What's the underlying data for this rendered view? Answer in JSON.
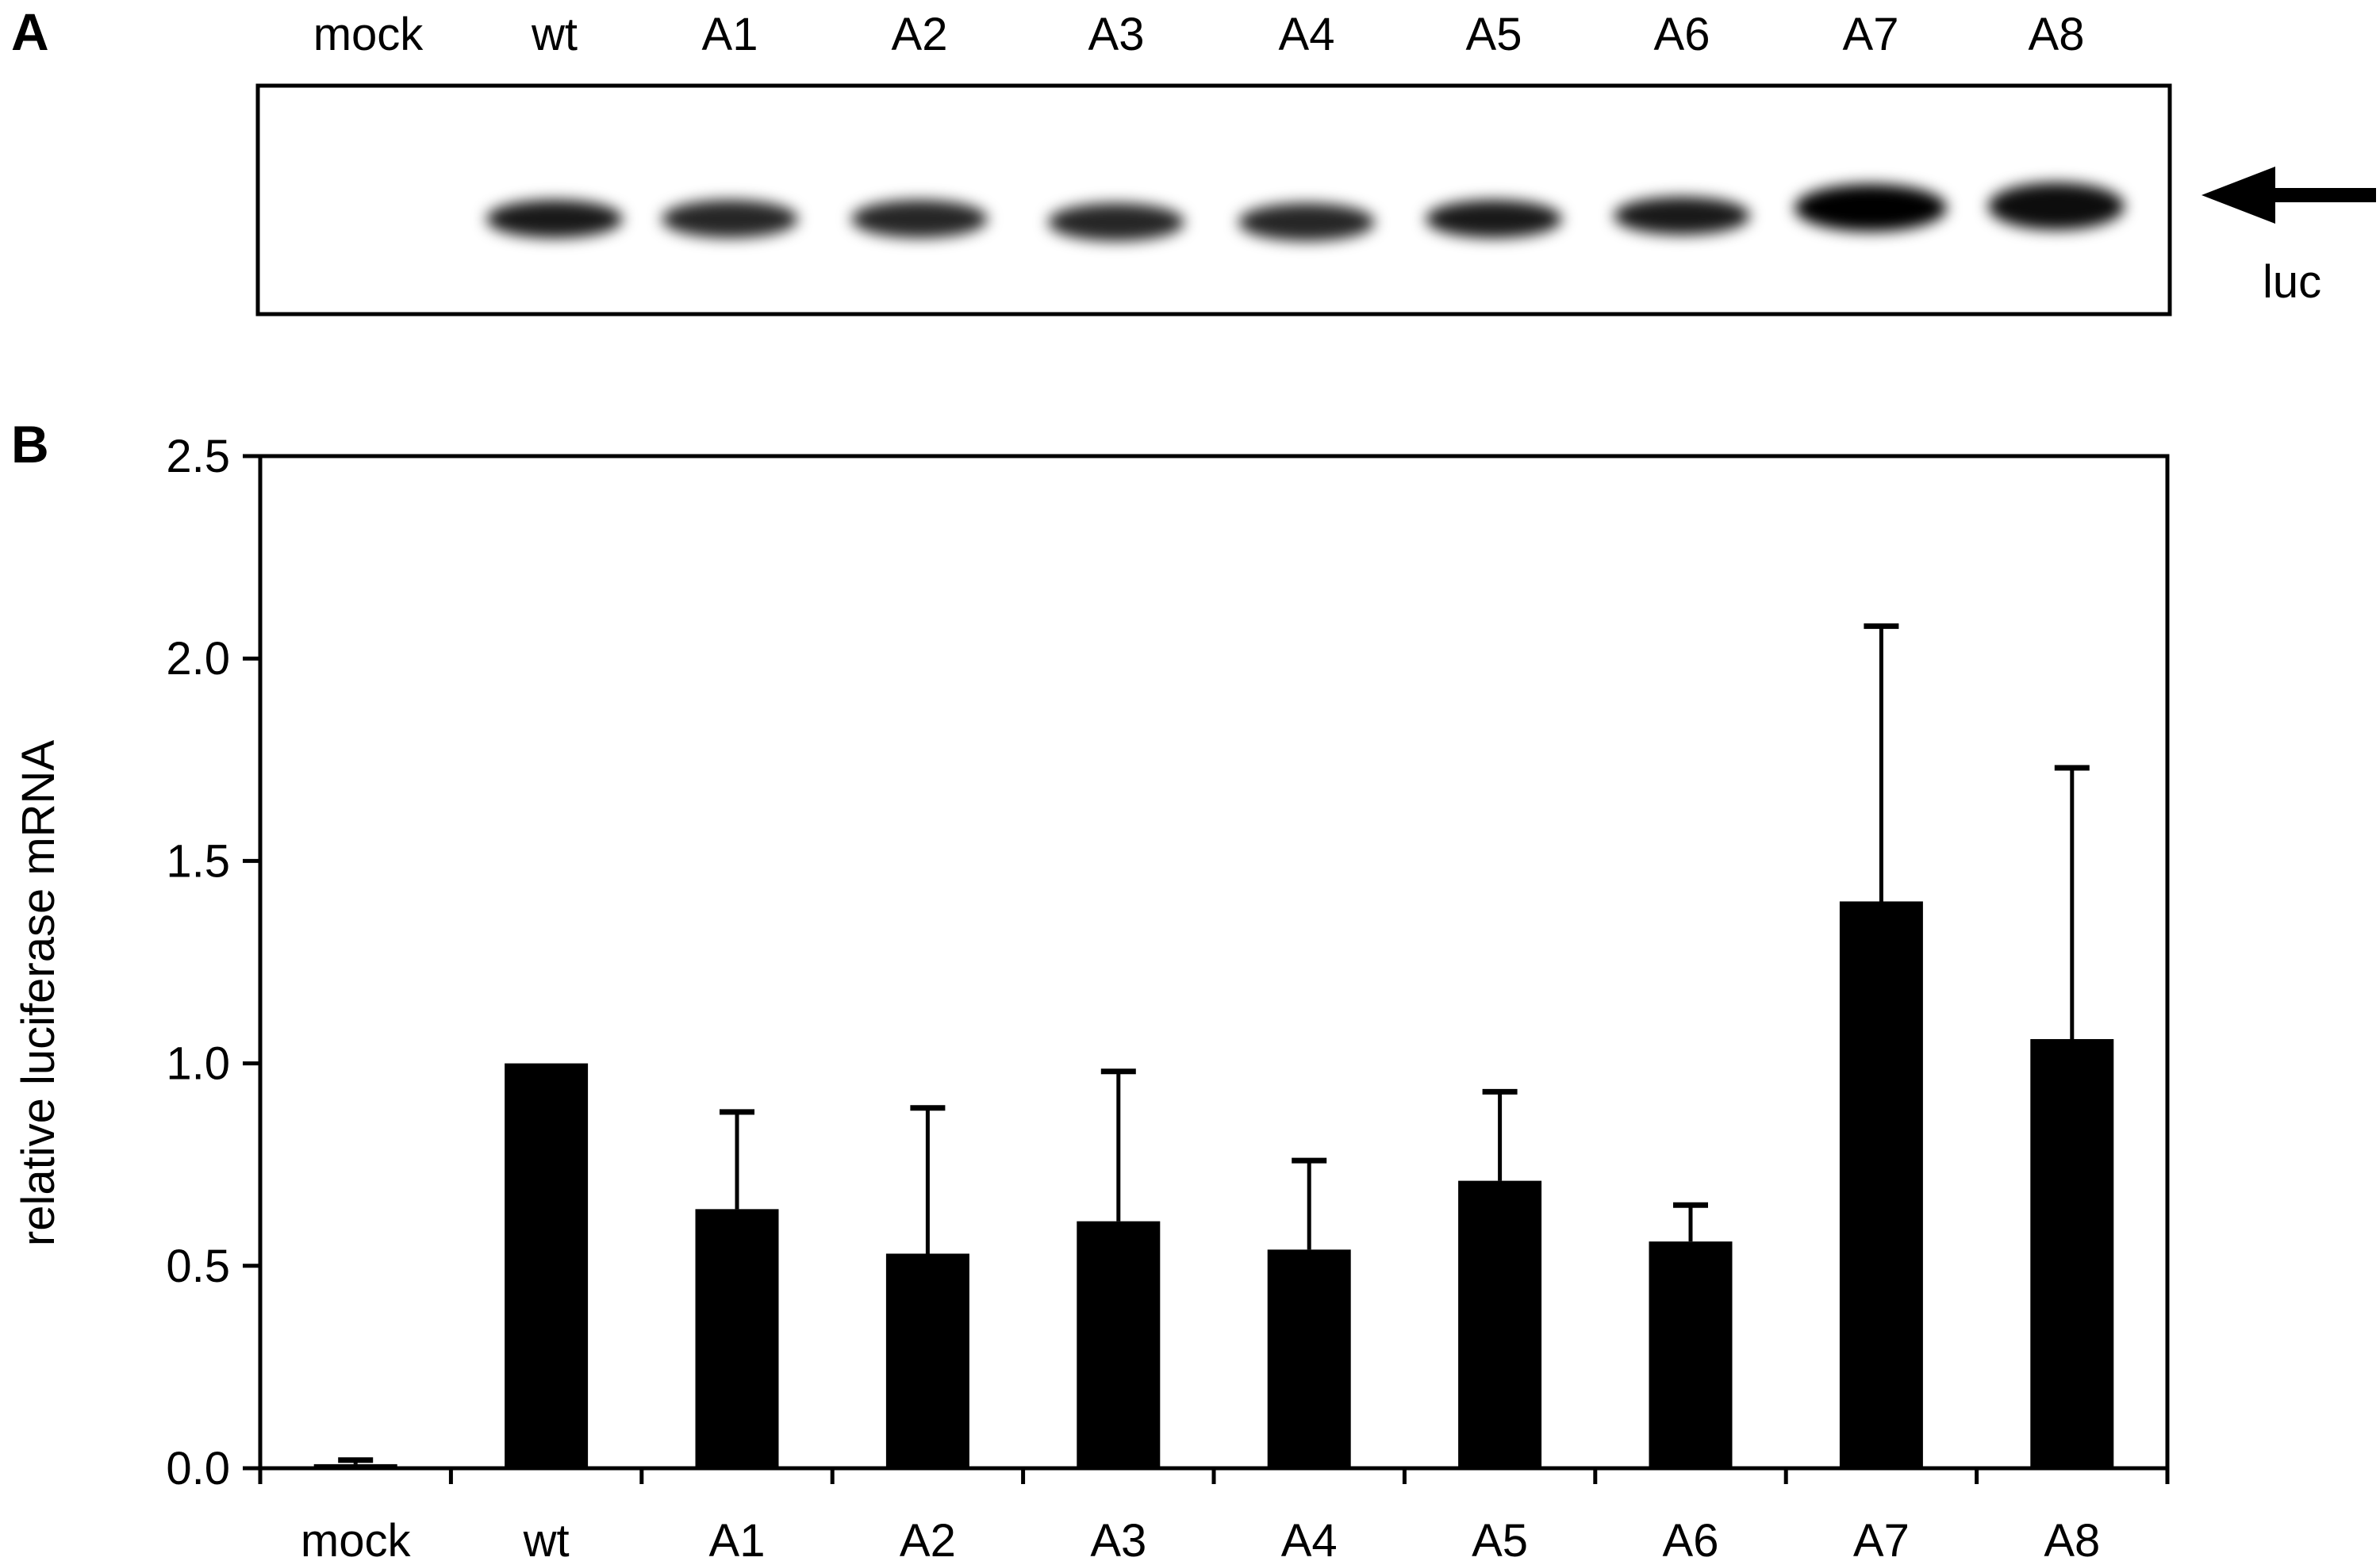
{
  "panel_a": {
    "label": "A",
    "lanes": [
      "mock",
      "wt",
      "A1",
      "A2",
      "A3",
      "A4",
      "A5",
      "A6",
      "A7",
      "A8"
    ],
    "band_label": "luc",
    "band_intensity": [
      0,
      0.9,
      0.85,
      0.85,
      0.85,
      0.85,
      0.9,
      0.9,
      1.0,
      0.95
    ]
  },
  "panel_b": {
    "label": "B"
  },
  "chart_data": {
    "type": "bar",
    "categories": [
      "mock",
      "wt",
      "A1",
      "A2",
      "A3",
      "A4",
      "A5",
      "A6",
      "A7",
      "A8"
    ],
    "values": [
      0.01,
      1.0,
      0.64,
      0.53,
      0.61,
      0.54,
      0.71,
      0.56,
      1.4,
      1.06
    ],
    "error_upper": [
      0.02,
      1.0,
      0.88,
      0.89,
      0.98,
      0.76,
      0.93,
      0.65,
      2.08,
      1.73
    ],
    "ylabel": "relative luciferase mRNA",
    "xlabel": "",
    "ylim": [
      0,
      2.5
    ],
    "yticks": [
      0.0,
      0.5,
      1.0,
      1.5,
      2.0,
      2.5
    ],
    "ytick_labels": [
      "0.0",
      "0.5",
      "1.0",
      "1.5",
      "2.0",
      "2.5"
    ],
    "grid": false,
    "bar_color": "#000000"
  }
}
